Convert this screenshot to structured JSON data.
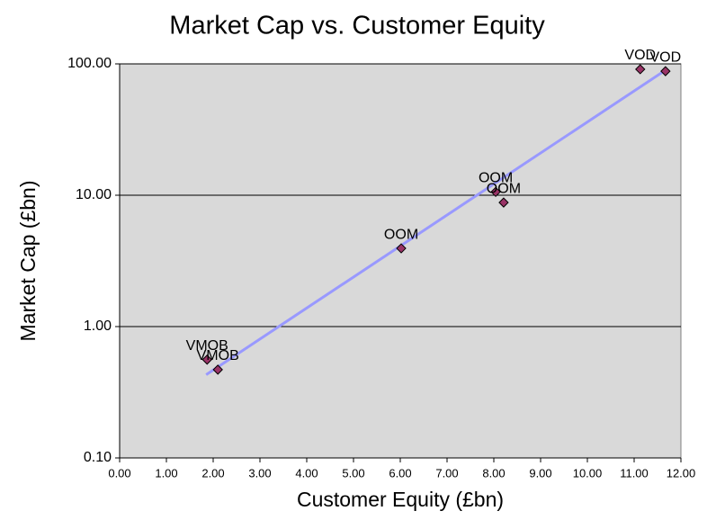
{
  "chart_data": {
    "type": "scatter",
    "title": "Market Cap vs. Customer Equity",
    "x_label": "Customer Equity (£bn)",
    "y_label": "Market Cap (£bn)",
    "x": [
      1.87,
      2.1,
      6.02,
      8.04,
      8.21,
      11.13,
      11.67
    ],
    "y": [
      0.56,
      0.47,
      3.94,
      10.6,
      8.8,
      91,
      88
    ],
    "labels": [
      "VMOB",
      "VMOB",
      "OOM",
      "OOM",
      "OOM",
      "VOD",
      "VOD"
    ],
    "color": "#993366",
    "trendline": {
      "x": [
        1.85,
        11.67
      ],
      "y": [
        0.43,
        89.5
      ],
      "color": "#9999ff"
    },
    "xlim": [
      0,
      12
    ],
    "xticks": [
      {
        "value": 0,
        "label": "0.00"
      },
      {
        "value": 1,
        "label": "1.00"
      },
      {
        "value": 2,
        "label": "2.00"
      },
      {
        "value": 3,
        "label": "3.00"
      },
      {
        "value": 4,
        "label": "4.00"
      },
      {
        "value": 5,
        "label": "5.00"
      },
      {
        "value": 6,
        "label": "6.00"
      },
      {
        "value": 7,
        "label": "7.00"
      },
      {
        "value": 8,
        "label": "8.00"
      },
      {
        "value": 9,
        "label": "9.00"
      },
      {
        "value": 10,
        "label": "10.00"
      },
      {
        "value": 11,
        "label": "11.00"
      },
      {
        "value": 12,
        "label": "12.00"
      }
    ],
    "ylim": [
      0.1,
      100
    ],
    "yticks": [
      {
        "value": 0.1,
        "label": "0.10"
      },
      {
        "value": 1,
        "label": "1.00"
      },
      {
        "value": 10,
        "label": "10.00"
      },
      {
        "value": 100,
        "label": "100.00"
      }
    ],
    "y_log": true,
    "grid": true,
    "plot_background": "#d9d9d9"
  }
}
